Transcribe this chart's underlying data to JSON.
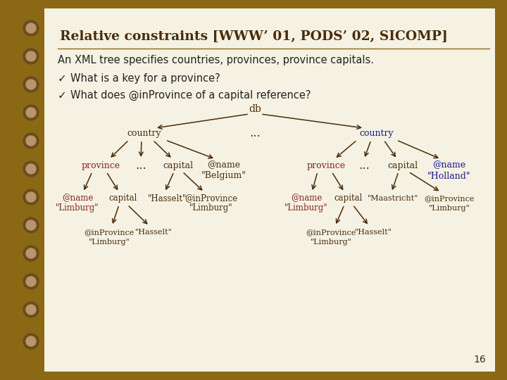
{
  "title": "Relative constraints [WWW’ 01, PODS’ 02, SICOMP]",
  "background_color": "#f5f2e3",
  "border_color": "#8B6914",
  "spine_color": "#6b4c1e",
  "spine_highlight": "#b8956a",
  "line_color": "#8B6914",
  "text_color": "#222222",
  "node_color_dark": "#4a2c0a",
  "node_color_red": "#8B2020",
  "node_color_blue": "#1a1a8B",
  "body_text": "An XML tree specifies countries, provinces, province capitals.",
  "bullet1": "What is a key for a province?",
  "bullet2": "What does @inProvince of a capital reference?",
  "page_number": "16"
}
